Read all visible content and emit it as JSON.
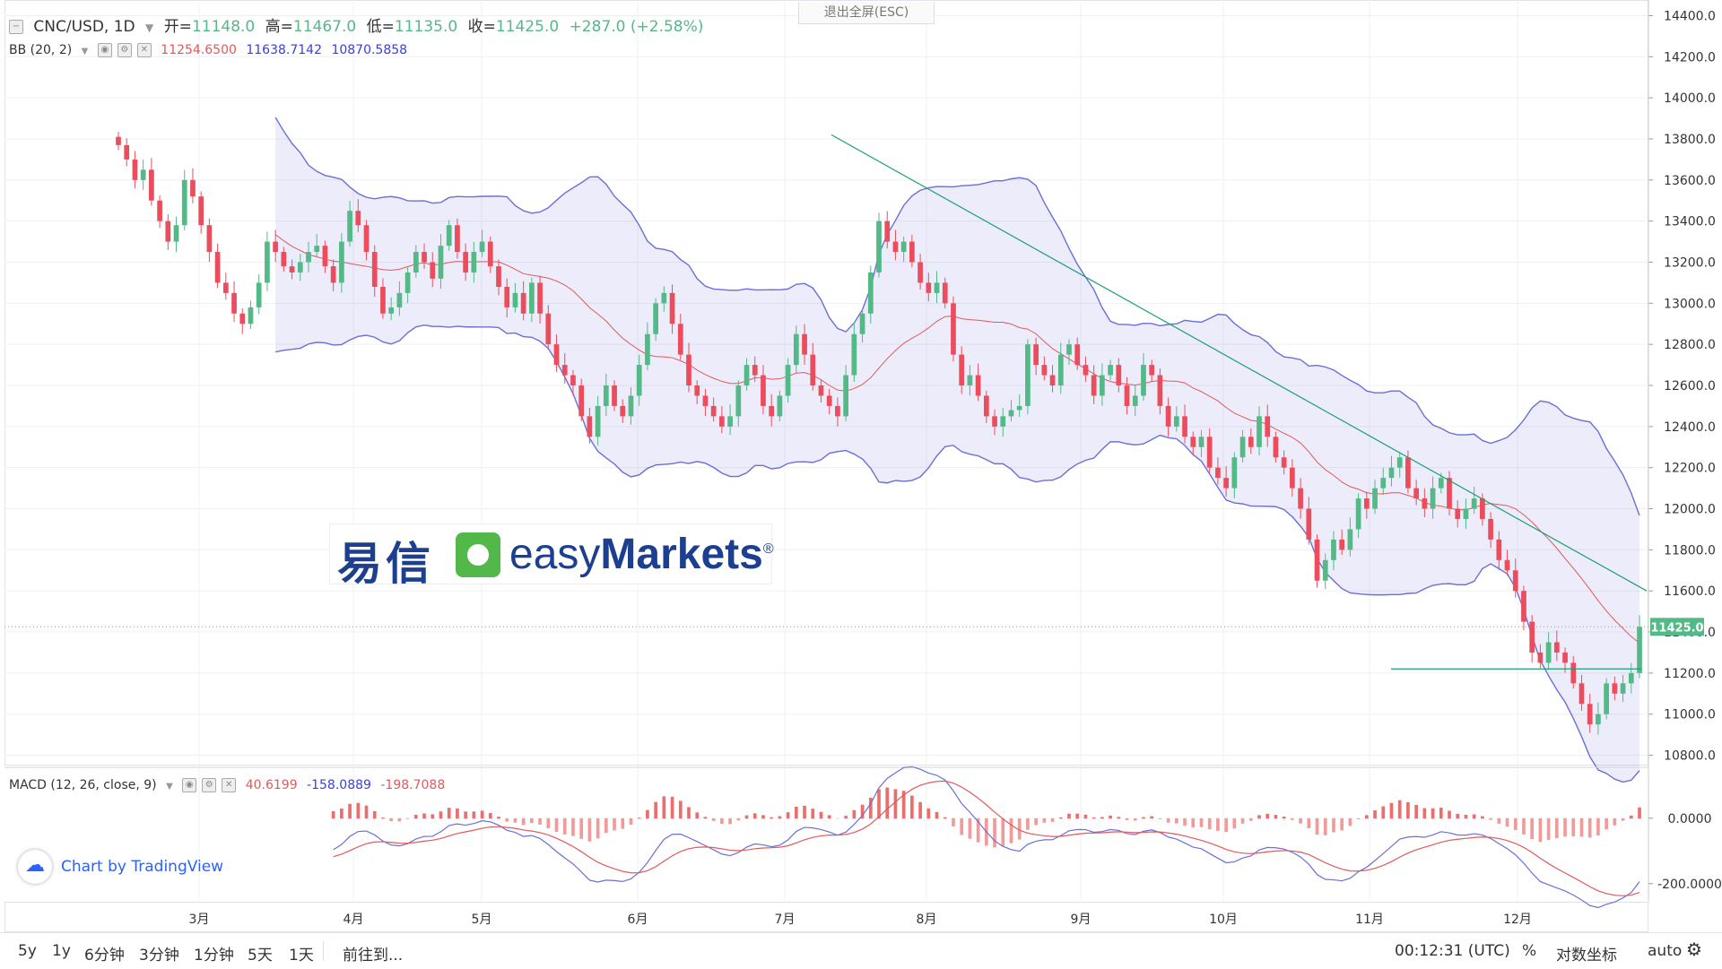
{
  "header": {
    "symbol": "CNC/USD, 1D",
    "open_label": "开=",
    "open": "11148.0",
    "high_label": "高=",
    "high": "11467.0",
    "low_label": "低=",
    "low": "11135.0",
    "close_label": "收=",
    "close": "11425.0",
    "change": "+287.0 (+2.58%)",
    "bb_label": "BB (20, 2)",
    "bb_mid": "11254.6500",
    "bb_upper": "11638.7142",
    "bb_lower": "10870.5858",
    "exit_fullscreen": "退出全屏(ESC)"
  },
  "macd_legend": {
    "label": "MACD (12, 26, close, 9)",
    "hist": "40.6199",
    "macd": "-158.0889",
    "signal": "-198.7088"
  },
  "price_axis": {
    "ticks": [
      "14400.0",
      "14200.0",
      "14000.0",
      "13800.0",
      "13600.0",
      "13400.0",
      "13200.0",
      "13000.0",
      "12800.0",
      "12600.0",
      "12400.0",
      "12200.0",
      "12000.0",
      "11800.0",
      "11600.0",
      "11400.0",
      "11200.0",
      "11000.0",
      "10800.0"
    ],
    "last_price": "11425.0"
  },
  "macd_axis": {
    "ticks": [
      "0.0000",
      "-200.0000"
    ]
  },
  "time_axis": {
    "labels": [
      "3月",
      "4月",
      "5月",
      "6月",
      "7月",
      "8月",
      "9月",
      "10月",
      "11月",
      "12月"
    ]
  },
  "watermark": {
    "cn": "易信",
    "en_light": "easy",
    "en_bold": "Markets",
    "reg": "®"
  },
  "tradingview": {
    "text": "Chart by TradingView"
  },
  "bottom_bar": {
    "ranges": [
      "5y",
      "1y",
      "6分钟",
      "3分钟",
      "1分钟",
      "5天",
      "1天"
    ],
    "goto": "前往到...",
    "time": "00:12:31 (UTC)",
    "percent": "%",
    "log": "对数坐标",
    "auto": "auto"
  },
  "colors": {
    "up": "#53b987",
    "down": "#eb4d5c",
    "bb_band": "#6b6fd6",
    "bb_mid": "#e2595d",
    "trend": "#1b9e77"
  },
  "chart_data": {
    "type": "candlestick",
    "symbol": "CNC/USD",
    "interval": "1D",
    "ylim": [
      10750,
      14450
    ],
    "x_ticks": [
      "3月",
      "4月",
      "5月",
      "6月",
      "7月",
      "8月",
      "9月",
      "10月",
      "11月",
      "12月"
    ],
    "candles_close": [
      13770,
      13700,
      13600,
      13650,
      13500,
      13400,
      13300,
      13380,
      13600,
      13520,
      13380,
      13250,
      13100,
      13050,
      12950,
      12900,
      12980,
      13100,
      13300,
      13250,
      13180,
      13150,
      13200,
      13250,
      13280,
      13180,
      13100,
      13300,
      13450,
      13380,
      13250,
      13080,
      12950,
      12980,
      13050,
      13150,
      13250,
      13200,
      13120,
      13280,
      13380,
      13250,
      13150,
      13250,
      13300,
      13180,
      13080,
      12980,
      13050,
      12950,
      13100,
      12950,
      12800,
      12700,
      12650,
      12600,
      12450,
      12350,
      12500,
      12600,
      12500,
      12450,
      12550,
      12700,
      12850,
      13000,
      13050,
      12900,
      12750,
      12600,
      12550,
      12500,
      12450,
      12400,
      12450,
      12600,
      12700,
      12650,
      12500,
      12450,
      12550,
      12700,
      12850,
      12750,
      12600,
      12550,
      12500,
      12450,
      12650,
      12850,
      12950,
      13150,
      13400,
      13300,
      13250,
      13300,
      13200,
      13100,
      13050,
      13100,
      13000,
      12750,
      12600,
      12650,
      12550,
      12450,
      12400,
      12450,
      12480,
      12500,
      12800,
      12700,
      12650,
      12600,
      12750,
      12800,
      12700,
      12650,
      12550,
      12650,
      12700,
      12600,
      12500,
      12550,
      12700,
      12650,
      12500,
      12400,
      12450,
      12350,
      12300,
      12350,
      12200,
      12150,
      12100,
      12250,
      12350,
      12300,
      12450,
      12350,
      12250,
      12200,
      12100,
      12000,
      11850,
      11650,
      11750,
      11850,
      11800,
      11900,
      12050,
      12000,
      12100,
      12150,
      12200,
      12250,
      12100,
      12050,
      12000,
      12100,
      12150,
      12000,
      11950,
      12000,
      12050,
      11950,
      11850,
      11750,
      11700,
      11600,
      11450,
      11300,
      11250,
      11350,
      11300,
      11250,
      11150,
      11050,
      10950,
      11000,
      11150,
      11100,
      11150,
      11200,
      11425
    ],
    "bb_upper_approx": [
      13900,
      13780,
      13650,
      13500,
      13450,
      13400,
      13420,
      13450,
      13480,
      13350,
      13300,
      13500,
      13500,
      13380,
      13050,
      12950,
      12850,
      12800,
      12800,
      12750,
      12700,
      12550,
      12350,
      12200,
      12250,
      12350,
      12300,
      12250,
      12250,
      12200,
      12500,
      13400,
      13300,
      13650,
      13600,
      13350,
      13150,
      12950,
      12850,
      12750,
      12650,
      12600,
      12550,
      12450,
      12350,
      12250,
      12200,
      12150,
      12000,
      11900,
      11800,
      11700,
      11600,
      11500,
      11700,
      11900,
      12000,
      12000,
      12000,
      11900,
      11850,
      11800,
      11800,
      11650,
      11600,
      11750,
      11500,
      11400,
      11200,
      11150
    ],
    "bb_lower_approx": [
      12800,
      12700,
      12800,
      12900,
      12850,
      12850,
      12800,
      12750,
      12400,
      12200,
      12250,
      12300,
      12300,
      12250,
      12200,
      12250,
      12350,
      12300,
      12200,
      12400,
      12300,
      12050,
      12300,
      12300,
      12250,
      12200,
      12100,
      12000,
      11850,
      11600,
      11550,
      11550,
      11700,
      11850,
      11650,
      11550,
      11400,
      11200,
      11050,
      10850
    ],
    "bb_mid_last": 11254.65,
    "trend_line": {
      "from_price": 13820,
      "to_price": 11600
    },
    "horizontal_line": 11220,
    "macd": {
      "hist": 40.6199,
      "macd": -158.0889,
      "signal": -198.7088,
      "ylim": [
        -250,
        150
      ]
    }
  }
}
